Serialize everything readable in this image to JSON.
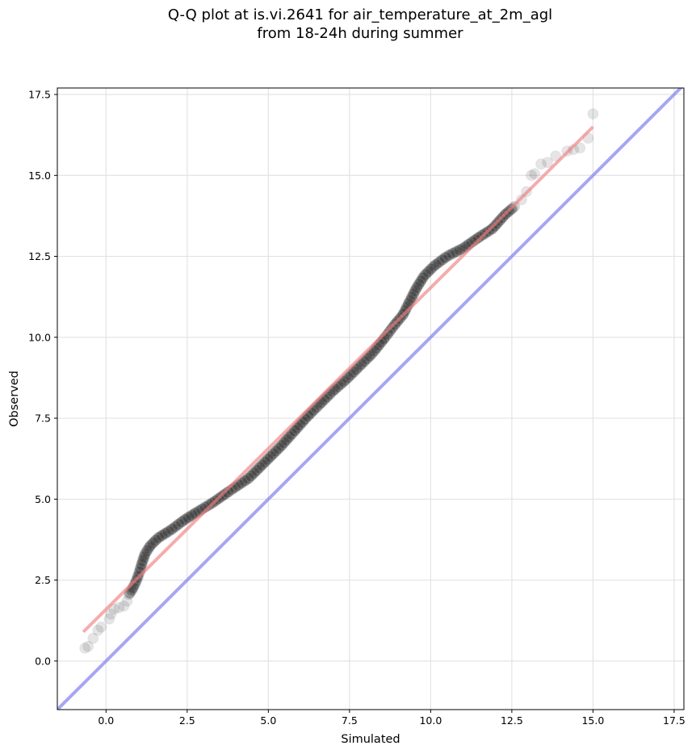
{
  "chart_data": {
    "type": "scatter",
    "title_line1": "Q-Q plot at is.vi.2641 for air_temperature_at_2m_agl",
    "title_line2": "from 18-24h during summer",
    "xlabel": "Simulated",
    "ylabel": "Observed",
    "xlim": [
      -1.5,
      17.8
    ],
    "ylim": [
      -1.5,
      17.7
    ],
    "xticks": [
      0.0,
      2.5,
      5.0,
      7.5,
      10.0,
      12.5,
      15.0,
      17.5
    ],
    "yticks": [
      0.0,
      2.5,
      5.0,
      7.5,
      10.0,
      12.5,
      15.0,
      17.5
    ],
    "tick_labels": [
      "0.0",
      "2.5",
      "5.0",
      "7.5",
      "10.0",
      "12.5",
      "15.0",
      "17.5"
    ],
    "grid": true,
    "points_sparse": [
      [
        -0.65,
        0.4
      ],
      [
        -0.55,
        0.45
      ],
      [
        -0.4,
        0.7
      ],
      [
        -0.25,
        0.95
      ],
      [
        -0.15,
        1.05
      ],
      [
        0.1,
        1.3
      ],
      [
        0.15,
        1.45
      ],
      [
        0.25,
        1.6
      ],
      [
        0.4,
        1.65
      ],
      [
        0.55,
        1.7
      ],
      [
        0.65,
        1.85
      ],
      [
        12.8,
        14.25
      ],
      [
        12.95,
        14.5
      ],
      [
        13.1,
        15.0
      ],
      [
        13.2,
        15.05
      ],
      [
        13.4,
        15.35
      ],
      [
        13.6,
        15.4
      ],
      [
        13.85,
        15.6
      ],
      [
        14.2,
        15.75
      ],
      [
        14.4,
        15.8
      ],
      [
        14.6,
        15.85
      ],
      [
        14.85,
        16.15
      ],
      [
        15.0,
        16.9
      ]
    ],
    "points_curve": [
      [
        0.7,
        2.05
      ],
      [
        0.8,
        2.2
      ],
      [
        0.9,
        2.4
      ],
      [
        1.0,
        2.65
      ],
      [
        1.1,
        3.0
      ],
      [
        1.2,
        3.3
      ],
      [
        1.35,
        3.55
      ],
      [
        1.6,
        3.8
      ],
      [
        2.0,
        4.05
      ],
      [
        2.4,
        4.35
      ],
      [
        2.8,
        4.6
      ],
      [
        3.3,
        4.9
      ],
      [
        3.8,
        5.25
      ],
      [
        4.4,
        5.65
      ],
      [
        4.9,
        6.15
      ],
      [
        5.4,
        6.65
      ],
      [
        5.8,
        7.1
      ],
      [
        6.2,
        7.55
      ],
      [
        6.6,
        7.95
      ],
      [
        7.0,
        8.35
      ],
      [
        7.4,
        8.7
      ],
      [
        7.8,
        9.1
      ],
      [
        8.2,
        9.5
      ],
      [
        8.6,
        10.0
      ],
      [
        8.9,
        10.4
      ],
      [
        9.15,
        10.7
      ],
      [
        9.35,
        11.1
      ],
      [
        9.55,
        11.5
      ],
      [
        9.8,
        11.9
      ],
      [
        10.1,
        12.2
      ],
      [
        10.5,
        12.5
      ],
      [
        11.0,
        12.75
      ],
      [
        11.5,
        13.1
      ],
      [
        11.9,
        13.35
      ],
      [
        12.3,
        13.8
      ],
      [
        12.6,
        14.05
      ]
    ],
    "fit_line": {
      "x": [
        -0.7,
        15.0
      ],
      "y": [
        0.9,
        16.5
      ],
      "color": "#f08080"
    },
    "identity_line": {
      "x": [
        -1.5,
        17.8
      ],
      "y": [
        -1.5,
        17.8
      ],
      "color": "#8080f0"
    },
    "point_color": "#000000"
  }
}
